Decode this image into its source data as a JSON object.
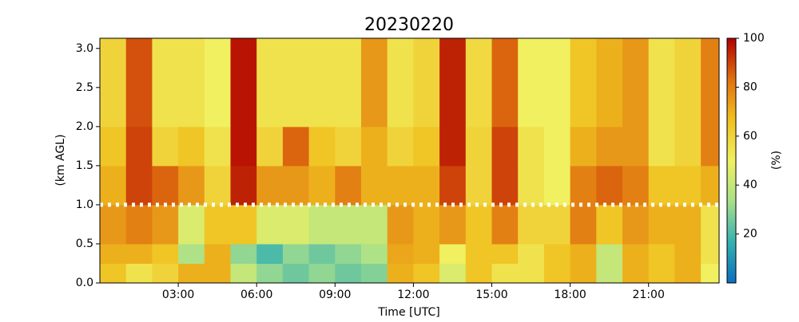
{
  "chart_data": {
    "type": "heatmap",
    "title": "20230220",
    "xlabel": "Time [UTC]",
    "ylabel": "(km AGL)",
    "colorbar_label": "(%)",
    "xlim": [
      0,
      23.7
    ],
    "ylim": [
      0,
      3.13
    ],
    "xticks": [
      {
        "value": 3,
        "label": "03:00"
      },
      {
        "value": 6,
        "label": "06:00"
      },
      {
        "value": 9,
        "label": "09:00"
      },
      {
        "value": 12,
        "label": "12:00"
      },
      {
        "value": 15,
        "label": "15:00"
      },
      {
        "value": 18,
        "label": "18:00"
      },
      {
        "value": 21,
        "label": "21:00"
      }
    ],
    "yticks": [
      {
        "value": 0,
        "label": "0.0"
      },
      0.5,
      {
        "value": 1,
        "label": "1.0"
      },
      1.5,
      {
        "value": 2,
        "label": "2.0"
      },
      2.5,
      {
        "value": 3,
        "label": "3.0"
      }
    ],
    "clim": [
      0,
      100
    ],
    "cticks": [
      20,
      40,
      60,
      80,
      100
    ],
    "colormap": [
      "#0a6fbf",
      "#35b0b0",
      "#a8e08a",
      "#f0f060",
      "#f0c020",
      "#e07010",
      "#b00000"
    ],
    "hline": 1.0,
    "hline_color": "#ffffff",
    "x_bins": [
      0,
      1,
      2,
      3,
      4,
      5,
      6,
      7,
      8,
      9,
      10,
      11,
      12,
      13,
      14,
      15,
      16,
      17,
      18,
      19,
      20,
      21,
      22,
      23,
      23.7
    ],
    "y_bins": [
      0,
      0.25,
      0.5,
      1.0,
      1.5,
      2.0,
      3.13
    ],
    "z": [
      [
        65,
        70,
        75,
        70,
        65,
        60
      ],
      [
        55,
        70,
        80,
        90,
        90,
        88
      ],
      [
        60,
        65,
        75,
        85,
        60,
        55
      ],
      [
        70,
        35,
        45,
        75,
        65,
        55
      ],
      [
        70,
        70,
        65,
        60,
        55,
        50
      ],
      [
        40,
        30,
        65,
        95,
        97,
        97
      ],
      [
        30,
        20,
        45,
        75,
        60,
        55
      ],
      [
        25,
        30,
        45,
        75,
        85,
        55
      ],
      [
        30,
        25,
        40,
        70,
        65,
        55
      ],
      [
        25,
        30,
        40,
        80,
        60,
        55
      ],
      [
        28,
        35,
        40,
        70,
        70,
        75
      ],
      [
        70,
        72,
        75,
        70,
        60,
        55
      ],
      [
        65,
        70,
        70,
        70,
        65,
        60
      ],
      [
        45,
        50,
        75,
        90,
        95,
        95
      ],
      [
        65,
        65,
        65,
        60,
        60,
        58
      ],
      [
        55,
        65,
        80,
        90,
        90,
        85
      ],
      [
        55,
        55,
        60,
        55,
        55,
        50
      ],
      [
        65,
        65,
        60,
        50,
        50,
        50
      ],
      [
        70,
        70,
        80,
        80,
        70,
        65
      ],
      [
        40,
        40,
        65,
        85,
        75,
        70
      ],
      [
        70,
        70,
        75,
        80,
        75,
        75
      ],
      [
        65,
        65,
        70,
        65,
        55,
        55
      ],
      [
        70,
        70,
        70,
        65,
        60,
        60
      ],
      [
        50,
        55,
        55,
        70,
        80,
        80
      ]
    ]
  }
}
